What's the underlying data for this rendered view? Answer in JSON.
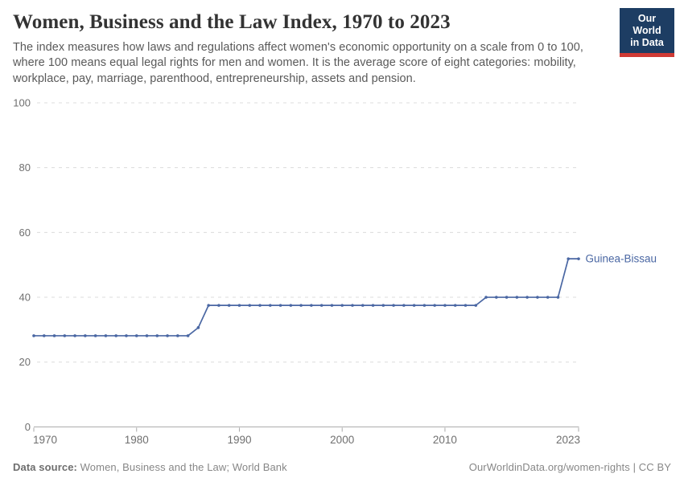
{
  "header": {
    "title": "Women, Business and the Law Index, 1970 to 2023",
    "subtitle": "The index measures how laws and regulations affect women's economic opportunity on a scale from 0 to 100, where 100 means equal legal rights for men and women. It is the average score of eight categories: mobility, workplace, pay, marriage, parenthood, entrepreneurship, assets and pension.",
    "logo": {
      "line1": "Our World",
      "line2": "in Data",
      "bg_color": "#1d3d63",
      "accent_color": "#cf3a34"
    }
  },
  "chart_data": {
    "type": "line",
    "title": "Women, Business and the Law Index, 1970 to 2023",
    "xlabel": "",
    "ylabel": "",
    "xlim": [
      1970,
      2023
    ],
    "ylim": [
      0,
      100
    ],
    "yticks": [
      0,
      20,
      40,
      60,
      80,
      100
    ],
    "xticks": [
      1970,
      1980,
      1990,
      2000,
      2010,
      2023
    ],
    "grid": "horizontal-dashed",
    "legend_position": "end-of-line-label",
    "series": [
      {
        "name": "Guinea-Bissau",
        "color": "#4a67a3",
        "x": [
          1970,
          1971,
          1972,
          1973,
          1974,
          1975,
          1976,
          1977,
          1978,
          1979,
          1980,
          1981,
          1982,
          1983,
          1984,
          1985,
          1986,
          1987,
          1988,
          1989,
          1990,
          1991,
          1992,
          1993,
          1994,
          1995,
          1996,
          1997,
          1998,
          1999,
          2000,
          2001,
          2002,
          2003,
          2004,
          2005,
          2006,
          2007,
          2008,
          2009,
          2010,
          2011,
          2012,
          2013,
          2014,
          2015,
          2016,
          2017,
          2018,
          2019,
          2020,
          2021,
          2022,
          2023
        ],
        "values": [
          28.125,
          28.125,
          28.125,
          28.125,
          28.125,
          28.125,
          28.125,
          28.125,
          28.125,
          28.125,
          28.125,
          28.125,
          28.125,
          28.125,
          28.125,
          28.125,
          30.625,
          37.5,
          37.5,
          37.5,
          37.5,
          37.5,
          37.5,
          37.5,
          37.5,
          37.5,
          37.5,
          37.5,
          37.5,
          37.5,
          37.5,
          37.5,
          37.5,
          37.5,
          37.5,
          37.5,
          37.5,
          37.5,
          37.5,
          37.5,
          37.5,
          37.5,
          37.5,
          37.5,
          40,
          40,
          40,
          40,
          40,
          40,
          40,
          40,
          51.875,
          51.875
        ]
      }
    ]
  },
  "footer": {
    "datasource_label": "Data source:",
    "datasource_value": "Women, Business and the Law; World Bank",
    "link": "OurWorldinData.org/women-rights | CC BY"
  },
  "colors": {
    "line": "#4a67a3",
    "grid": "#dcdcdc",
    "axis": "#a9a9a9",
    "tick_label": "#6f6f6f",
    "title_text": "#333333",
    "subtitle_text": "#595959"
  }
}
